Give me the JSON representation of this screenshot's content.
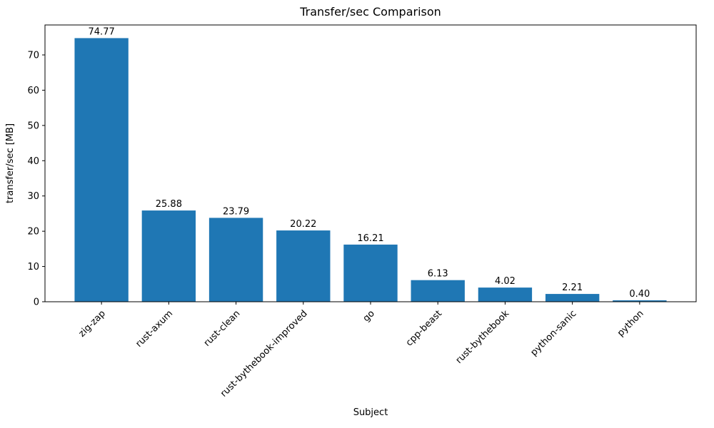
{
  "chart_data": {
    "type": "bar",
    "title": "Transfer/sec Comparison",
    "xlabel": "Subject",
    "ylabel": "transfer/sec [MB]",
    "categories": [
      "zig-zap",
      "rust-axum",
      "rust-clean",
      "rust-bythebook-improved",
      "go",
      "cpp-beast",
      "rust-bythebook",
      "python-sanic",
      "python"
    ],
    "values": [
      74.77,
      25.88,
      23.79,
      20.22,
      16.21,
      6.13,
      4.02,
      2.21,
      0.4
    ],
    "value_labels": [
      "74.77",
      "25.88",
      "23.79",
      "20.22",
      "16.21",
      "6.13",
      "4.02",
      "2.21",
      "0.40"
    ],
    "ylim": [
      0,
      78.5
    ],
    "yticks": [
      0,
      10,
      20,
      30,
      40,
      50,
      60,
      70
    ],
    "bar_color": "#1f77b4",
    "axis_color": "#000000",
    "background_color": "#ffffff",
    "grid": false,
    "legend_position": "none",
    "x_tick_rotation_deg": 45
  }
}
